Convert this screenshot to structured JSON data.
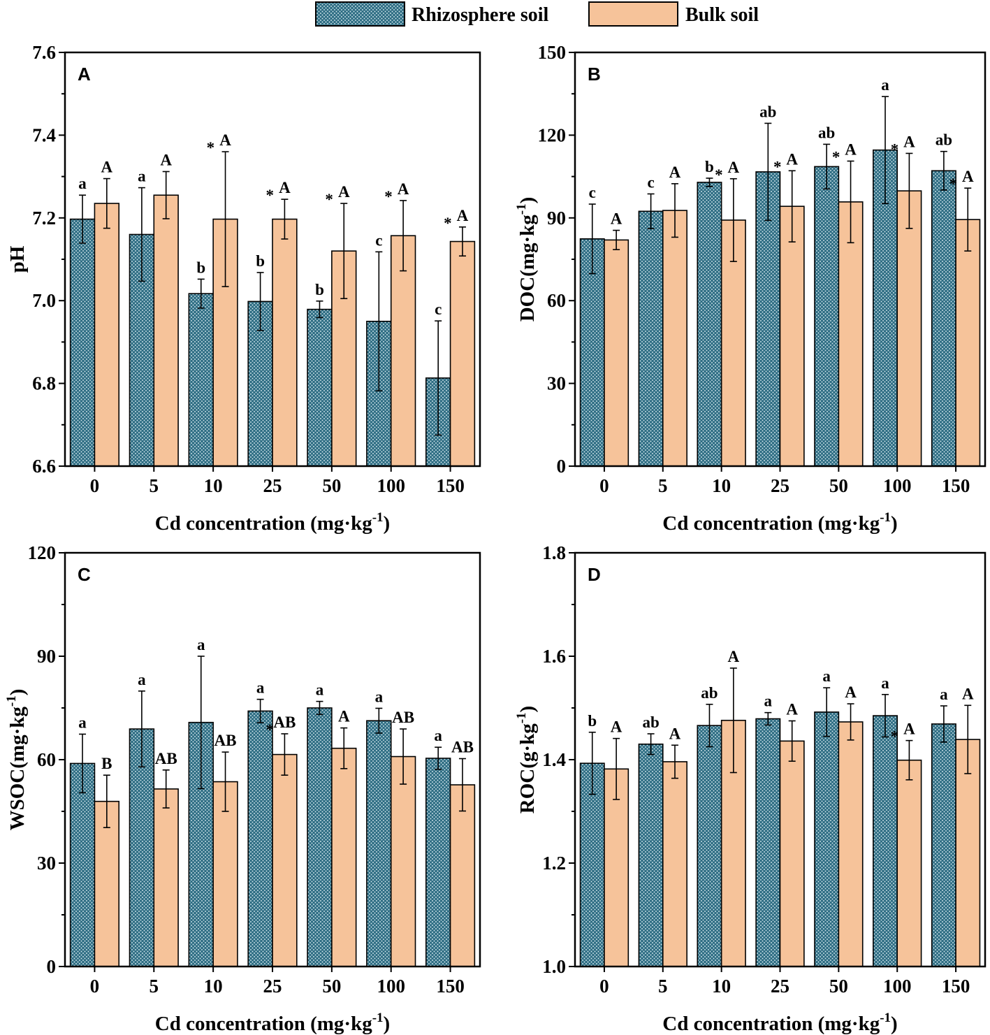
{
  "legend": {
    "series1": "Rhizosphere soil",
    "series2": "Bulk soil"
  },
  "colors": {
    "rhizosphere_fill": "#2f6e84",
    "rhizosphere_dot": "#cfe3ea",
    "bulk_fill": "#f6c39a",
    "axis": "#000000"
  },
  "chart_data": [
    {
      "type": "bar",
      "panel": "A",
      "categories": [
        "0",
        "5",
        "10",
        "25",
        "50",
        "100",
        "150"
      ],
      "xlabel": "Cd concentration (mg·kg",
      "xlabel_sup": "-1",
      "xlabel_end": ")",
      "ylabel": "pH",
      "ylabel_sup": "",
      "ylabel_end": "",
      "ylim": [
        6.6,
        7.6
      ],
      "yticks": [
        6.6,
        6.8,
        7.0,
        7.2,
        7.4,
        7.6
      ],
      "ytick_labels": [
        "6.6",
        "6.8",
        "7.0",
        "7.2",
        "7.4",
        "7.6"
      ],
      "series": [
        {
          "name": "Rhizosphere soil",
          "values": [
            7.197,
            7.16,
            7.017,
            6.998,
            6.979,
            6.95,
            6.813
          ],
          "errors": [
            0.058,
            0.113,
            0.035,
            0.07,
            0.02,
            0.168,
            0.138
          ],
          "letters": [
            "a",
            "a",
            "b",
            "b",
            "b",
            "c",
            "c"
          ]
        },
        {
          "name": "Bulk soil",
          "values": [
            7.235,
            7.255,
            7.197,
            7.197,
            7.12,
            7.157,
            7.143
          ],
          "errors": [
            0.06,
            0.057,
            0.163,
            0.048,
            0.115,
            0.085,
            0.035
          ],
          "letters": [
            "A",
            "A",
            "A",
            "A",
            "A",
            "A",
            "A"
          ],
          "stars": [
            false,
            false,
            true,
            true,
            true,
            true,
            true
          ]
        }
      ]
    },
    {
      "type": "bar",
      "panel": "B",
      "categories": [
        "0",
        "5",
        "10",
        "25",
        "50",
        "100",
        "150"
      ],
      "xlabel": "Cd concentration (mg·kg",
      "xlabel_sup": "-1",
      "xlabel_end": ")",
      "ylabel": "DOC(mg·kg",
      "ylabel_sup": "-1",
      "ylabel_end": ")",
      "ylim": [
        0,
        150
      ],
      "yticks": [
        0,
        30,
        60,
        90,
        120,
        150
      ],
      "ytick_labels": [
        "0",
        "30",
        "60",
        "90",
        "120",
        "150"
      ],
      "series": [
        {
          "name": "Rhizosphere soil",
          "values": [
            82.4,
            92.4,
            102.9,
            106.7,
            108.6,
            114.6,
            107.1
          ],
          "errors": [
            12.6,
            6.3,
            1.5,
            17.6,
            8.1,
            19.4,
            7.0
          ],
          "letters": [
            "c",
            "c",
            "b",
            "ab",
            "ab",
            "a",
            "ab"
          ]
        },
        {
          "name": "Bulk soil",
          "values": [
            82.0,
            92.7,
            89.2,
            94.2,
            95.8,
            99.8,
            89.4
          ],
          "errors": [
            3.5,
            9.7,
            15.0,
            12.9,
            14.8,
            13.6,
            11.4
          ],
          "letters": [
            "A",
            "A",
            "A",
            "A",
            "A",
            "A",
            "A"
          ],
          "stars": [
            false,
            false,
            true,
            true,
            true,
            true,
            true
          ]
        }
      ]
    },
    {
      "type": "bar",
      "panel": "C",
      "categories": [
        "0",
        "5",
        "10",
        "25",
        "50",
        "100",
        "150"
      ],
      "xlabel": "Cd concentration (mg·kg",
      "xlabel_sup": "-1",
      "xlabel_end": ")",
      "ylabel": "WSOC(mg·kg",
      "ylabel_sup": "-1",
      "ylabel_end": ")",
      "ylim": [
        0,
        120
      ],
      "yticks": [
        0,
        30,
        60,
        90,
        120
      ],
      "ytick_labels": [
        "0",
        "30",
        "60",
        "90",
        "120"
      ],
      "series": [
        {
          "name": "Rhizosphere soil",
          "values": [
            58.9,
            68.9,
            70.8,
            74.1,
            75.0,
            71.3,
            60.4
          ],
          "errors": [
            8.5,
            11.0,
            19.2,
            3.4,
            1.9,
            3.6,
            3.2
          ],
          "letters": [
            "a",
            "a",
            "a",
            "a",
            "a",
            "a",
            "a"
          ]
        },
        {
          "name": "Bulk soil",
          "values": [
            47.9,
            51.5,
            53.6,
            61.5,
            63.3,
            60.9,
            52.7
          ],
          "errors": [
            7.6,
            5.5,
            8.6,
            6.0,
            5.9,
            8.0,
            7.6
          ],
          "letters": [
            "B",
            "AB",
            "AB",
            "AB",
            "A",
            "AB",
            "AB"
          ],
          "stars": [
            false,
            false,
            false,
            true,
            false,
            false,
            false
          ]
        }
      ]
    },
    {
      "type": "bar",
      "panel": "D",
      "categories": [
        "0",
        "5",
        "10",
        "25",
        "50",
        "100",
        "150"
      ],
      "xlabel": "Cd concentration (mg·kg",
      "xlabel_sup": "-1",
      "xlabel_end": ")",
      "ylabel": "ROC(g·kg",
      "ylabel_sup": "-1",
      "ylabel_end": ")",
      "ylim": [
        1.0,
        1.8
      ],
      "yticks": [
        1.0,
        1.2,
        1.4,
        1.6,
        1.8
      ],
      "ytick_labels": [
        "1.0",
        "1.2",
        "1.4",
        "1.6",
        "1.8"
      ],
      "series": [
        {
          "name": "Rhizosphere soil",
          "values": [
            1.393,
            1.43,
            1.466,
            1.479,
            1.492,
            1.485,
            1.469
          ],
          "errors": [
            0.06,
            0.02,
            0.041,
            0.012,
            0.047,
            0.041,
            0.035
          ],
          "letters": [
            "b",
            "ab",
            "ab",
            "a",
            "a",
            "a",
            "a"
          ]
        },
        {
          "name": "Bulk soil",
          "values": [
            1.382,
            1.396,
            1.476,
            1.436,
            1.473,
            1.399,
            1.439
          ],
          "errors": [
            0.059,
            0.032,
            0.101,
            0.039,
            0.035,
            0.038,
            0.066
          ],
          "letters": [
            "A",
            "A",
            "A",
            "A",
            "A",
            "A",
            "A"
          ],
          "stars": [
            false,
            false,
            false,
            false,
            false,
            true,
            false
          ]
        }
      ]
    }
  ]
}
